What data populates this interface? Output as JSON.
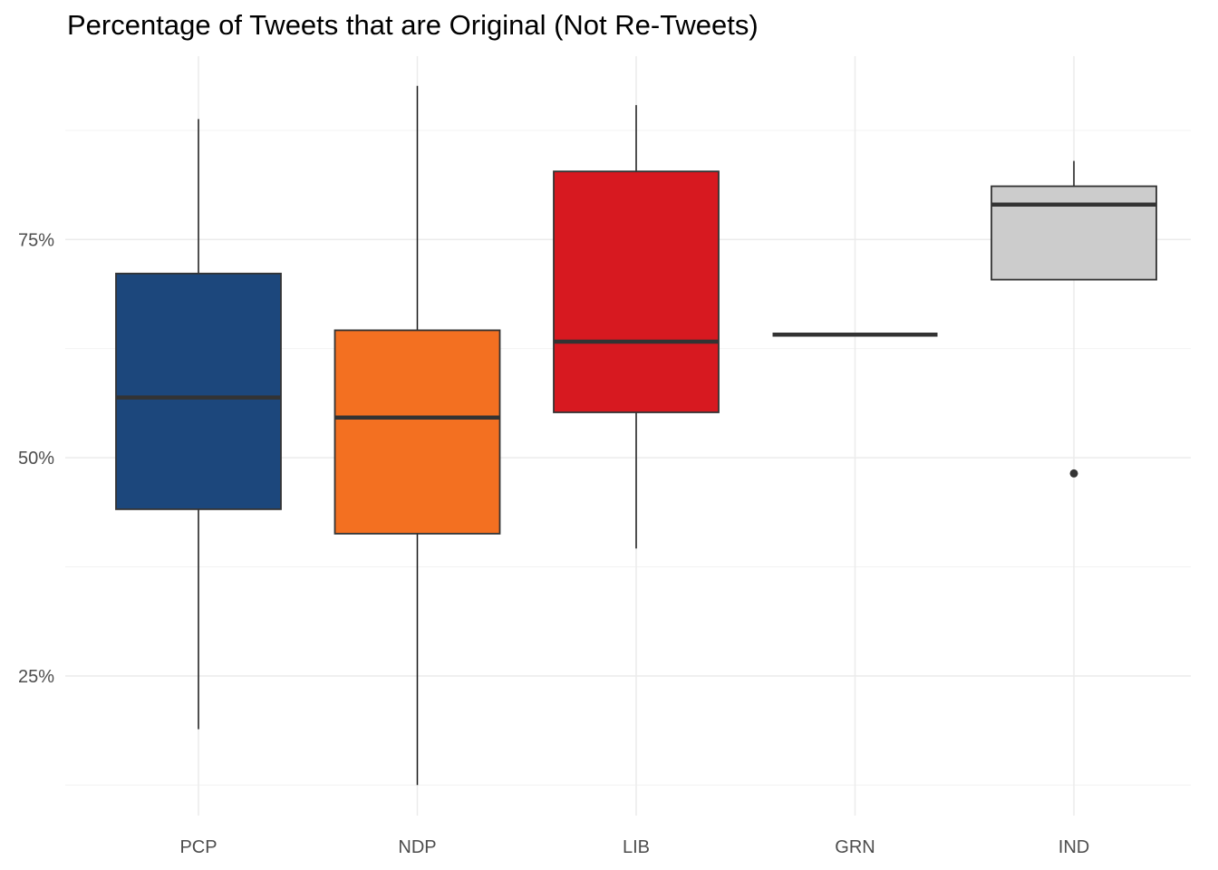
{
  "chart_data": {
    "type": "boxplot",
    "title": "Percentage of Tweets that are Original (Not Re-Tweets)",
    "xlabel": "",
    "ylabel": "",
    "categories": [
      "PCP",
      "NDP",
      "LIB",
      "GRN",
      "IND"
    ],
    "boxes": [
      {
        "category": "PCP",
        "min": 18.9,
        "q1": 44.1,
        "median": 56.9,
        "q3": 71.1,
        "max": 88.8,
        "outliers": [],
        "fill": "#1c477c"
      },
      {
        "category": "NDP",
        "min": 12.5,
        "q1": 41.3,
        "median": 54.6,
        "q3": 64.6,
        "max": 92.6,
        "outliers": [],
        "fill": "#f37021"
      },
      {
        "category": "LIB",
        "min": 39.6,
        "q1": 55.2,
        "median": 63.3,
        "q3": 82.8,
        "max": 90.4,
        "outliers": [],
        "fill": "#d71920"
      },
      {
        "category": "GRN",
        "min": 64.1,
        "q1": 64.1,
        "median": 64.1,
        "q3": 64.1,
        "max": 64.1,
        "outliers": [],
        "fill": "#3d9b35"
      },
      {
        "category": "IND",
        "min": 70.4,
        "q1": 70.4,
        "median": 79.0,
        "q3": 81.1,
        "max": 84.0,
        "outliers": [
          48.2
        ],
        "fill": "#cccccc"
      }
    ],
    "y_ticks": [
      25,
      50,
      75
    ],
    "y_tick_labels": [
      "25%",
      "50%",
      "75%"
    ],
    "y_minor_ticks": [
      12.5,
      37.5,
      62.5,
      87.5
    ],
    "ylim": [
      9,
      96
    ],
    "grid": true,
    "legend": "none",
    "colors": {
      "grid_major": "#ebebeb",
      "grid_minor": "#f2f2f2",
      "line": "#333333",
      "whisker": "#1a1a1a",
      "axis_text": "#4d4d4d"
    }
  }
}
